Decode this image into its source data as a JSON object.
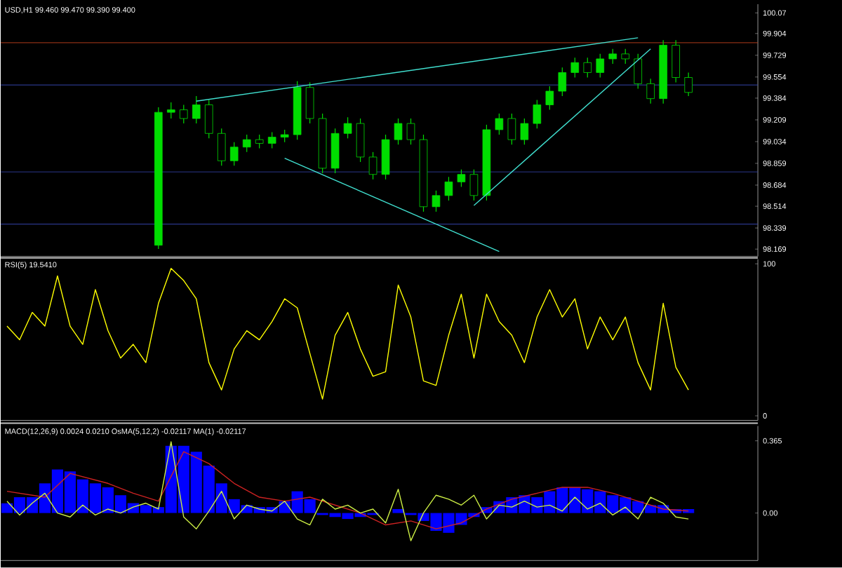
{
  "chart_data": [
    {
      "type": "candlestick",
      "title": "USD,H1 99.460 99.470 99.390 99.400",
      "color": "#00dd00",
      "categories": [
        null,
        null,
        null,
        null,
        null,
        null,
        null,
        null,
        null,
        null,
        null,
        null,
        null,
        null,
        null,
        null,
        null,
        null,
        null,
        null,
        null,
        null,
        null,
        null,
        null,
        null,
        null,
        null,
        null,
        null,
        null,
        null,
        null,
        null,
        null,
        null,
        null,
        null,
        null,
        null,
        null,
        null,
        null,
        null,
        null,
        null,
        null,
        null,
        null,
        null,
        null,
        null,
        null,
        null,
        null,
        null,
        null,
        null,
        null,
        null
      ],
      "ohlc": [
        null,
        null,
        null,
        null,
        null,
        null,
        null,
        null,
        null,
        null,
        null,
        null,
        [
          98.2,
          99.31,
          98.17,
          99.27
        ],
        [
          99.27,
          99.35,
          99.22,
          99.29
        ],
        [
          99.29,
          99.33,
          99.18,
          99.22
        ],
        [
          99.22,
          99.4,
          99.18,
          99.33
        ],
        [
          99.33,
          99.37,
          99.06,
          99.1
        ],
        [
          99.1,
          99.14,
          98.84,
          98.88
        ],
        [
          98.88,
          99.03,
          98.84,
          98.99
        ],
        [
          98.99,
          99.09,
          98.95,
          99.05
        ],
        [
          99.05,
          99.09,
          98.98,
          99.02
        ],
        [
          99.02,
          99.11,
          98.98,
          99.07
        ],
        [
          99.07,
          99.13,
          99.03,
          99.09
        ],
        [
          99.09,
          99.52,
          99.05,
          99.47
        ],
        [
          99.47,
          99.51,
          99.18,
          99.22
        ],
        [
          99.22,
          99.26,
          98.78,
          98.82
        ],
        [
          98.82,
          99.14,
          98.78,
          99.1
        ],
        [
          99.1,
          99.23,
          99.06,
          99.18
        ],
        [
          99.18,
          99.22,
          98.87,
          98.91
        ],
        [
          98.91,
          98.95,
          98.73,
          98.77
        ],
        [
          98.77,
          99.09,
          98.73,
          99.05
        ],
        [
          99.05,
          99.22,
          99.01,
          99.18
        ],
        [
          99.18,
          99.22,
          99.01,
          99.05
        ],
        [
          99.05,
          99.09,
          98.47,
          98.51
        ],
        [
          98.51,
          98.64,
          98.47,
          98.6
        ],
        [
          98.6,
          98.75,
          98.56,
          98.71
        ],
        [
          98.71,
          98.81,
          98.67,
          98.77
        ],
        [
          98.77,
          98.81,
          98.56,
          98.6
        ],
        [
          98.6,
          99.17,
          98.56,
          99.13
        ],
        [
          99.13,
          99.26,
          99.09,
          99.22
        ],
        [
          99.22,
          99.26,
          99.01,
          99.05
        ],
        [
          99.05,
          99.22,
          99.01,
          99.18
        ],
        [
          99.18,
          99.37,
          99.14,
          99.33
        ],
        [
          99.33,
          99.48,
          99.29,
          99.44
        ],
        [
          99.44,
          99.63,
          99.4,
          99.59
        ],
        [
          99.59,
          99.71,
          99.55,
          99.67
        ],
        [
          99.67,
          99.71,
          99.55,
          99.59
        ],
        [
          99.59,
          99.74,
          99.55,
          99.7
        ],
        [
          99.7,
          99.78,
          99.66,
          99.74
        ],
        [
          99.74,
          99.78,
          99.66,
          99.7
        ],
        [
          99.7,
          99.74,
          99.46,
          99.5
        ],
        [
          99.5,
          99.54,
          99.34,
          99.38
        ],
        [
          99.38,
          99.85,
          99.34,
          99.81
        ],
        [
          99.81,
          99.85,
          99.51,
          99.55
        ],
        [
          99.55,
          99.59,
          99.4,
          99.43
        ],
        null,
        null,
        null,
        null,
        null
      ],
      "series": [
        {
          "type": "line",
          "color": "#40e0d0",
          "values": [
            null,
            null,
            null,
            null,
            null,
            null,
            null,
            null,
            null,
            null,
            null,
            null,
            null,
            null,
            null,
            99.36,
            null,
            null,
            null,
            null,
            null,
            null,
            null,
            null,
            null,
            null,
            null,
            null,
            null,
            null,
            null,
            null,
            null,
            null,
            null,
            null,
            null,
            null,
            null,
            null,
            null,
            null,
            null,
            null,
            null,
            null,
            null,
            null,
            null,
            null,
            99.87,
            null,
            null,
            null,
            null,
            null,
            null,
            null,
            null,
            null
          ]
        },
        {
          "type": "line",
          "color": "#40e0d0",
          "values": [
            null,
            null,
            null,
            null,
            null,
            null,
            null,
            null,
            null,
            null,
            null,
            null,
            null,
            null,
            null,
            null,
            null,
            null,
            null,
            null,
            null,
            null,
            null,
            null,
            null,
            null,
            null,
            null,
            null,
            null,
            null,
            null,
            null,
            null,
            null,
            null,
            null,
            98.52,
            null,
            null,
            null,
            null,
            null,
            null,
            null,
            null,
            null,
            null,
            null,
            null,
            null,
            99.78,
            null,
            null,
            null,
            null,
            null,
            null,
            null,
            null
          ]
        },
        {
          "type": "line",
          "color": "#40e0d0",
          "values": [
            null,
            null,
            null,
            null,
            null,
            null,
            null,
            null,
            null,
            null,
            null,
            null,
            null,
            null,
            null,
            null,
            null,
            null,
            null,
            null,
            null,
            null,
            98.9,
            null,
            null,
            null,
            null,
            null,
            null,
            null,
            null,
            null,
            null,
            null,
            null,
            null,
            null,
            null,
            null,
            98.15,
            null,
            null,
            null,
            null,
            null,
            null,
            null,
            null,
            null,
            null,
            null,
            null,
            null,
            null,
            null,
            null,
            null,
            null,
            null,
            null
          ]
        }
      ],
      "ref_lines": [
        {
          "axis": "y",
          "value": 99.83,
          "color": "#b03a1a"
        },
        {
          "axis": "y",
          "value": 99.49,
          "color": "#3344aa"
        },
        {
          "axis": "y",
          "value": 98.79,
          "color": "#3344aa"
        },
        {
          "axis": "y",
          "value": 98.37,
          "color": "#3344aa"
        }
      ],
      "ylim": [
        98.11,
        100.14
      ],
      "yticks": [
        100.07,
        99.904,
        99.729,
        99.554,
        99.384,
        99.209,
        99.034,
        98.859,
        98.684,
        98.514,
        98.339,
        98.169
      ],
      "tick_labels": "y"
    },
    {
      "type": "line",
      "title": "RSI(5) 19.5410",
      "color": "#ffff00",
      "categories": [
        null,
        null,
        null,
        null,
        null,
        null,
        null,
        null,
        null,
        null,
        null,
        null,
        null,
        null,
        null,
        null,
        null,
        null,
        null,
        null,
        null,
        null,
        null,
        null,
        null,
        null,
        null,
        null,
        null,
        null,
        null,
        null,
        null,
        null,
        null,
        null,
        null,
        null,
        null,
        null,
        null,
        null,
        null,
        null,
        null,
        null,
        null,
        null,
        null,
        null,
        null,
        null,
        null,
        null,
        null,
        null,
        null,
        null,
        null,
        null
      ],
      "values": [
        59,
        50,
        68,
        59,
        92,
        59,
        47,
        83,
        56,
        38,
        47,
        35,
        74,
        97,
        89,
        77,
        35,
        17,
        44,
        56,
        50,
        62,
        77,
        71,
        41,
        11,
        53,
        68,
        44,
        26,
        29,
        86,
        65,
        23,
        20,
        53,
        80,
        38,
        80,
        62,
        53,
        35,
        65,
        83,
        65,
        77,
        44,
        65,
        50,
        65,
        35,
        17,
        74,
        32,
        17,
        null,
        null,
        null,
        null,
        null
      ],
      "ylim": [
        -3,
        103
      ],
      "yticks": [
        100,
        0
      ],
      "tick_labels": "y"
    },
    {
      "type": "bar",
      "title": "MACD(12,26,9) 0.0024 0.0210 OsMA(5,12,2) -0.02117 MA(1) -0.02117",
      "categories": [
        null,
        null,
        null,
        null,
        null,
        null,
        null,
        null,
        null,
        null,
        null,
        null,
        null,
        null,
        null,
        null,
        null,
        null,
        null,
        null,
        null,
        null,
        null,
        null,
        null,
        null,
        null,
        null,
        null,
        null,
        null,
        null,
        null,
        null,
        null,
        null,
        null,
        null,
        null,
        null,
        null,
        null,
        null,
        null,
        null,
        null,
        null,
        null,
        null,
        null,
        null,
        null,
        null,
        null,
        null,
        null,
        null,
        null,
        null,
        null
      ],
      "series": [
        {
          "type": "bar",
          "color": "#0000ff",
          "values": [
            0.05,
            0.08,
            0.08,
            0.15,
            0.22,
            0.21,
            0.17,
            0.15,
            0.13,
            0.09,
            0.05,
            0.04,
            0.03,
            0.34,
            0.34,
            0.31,
            0.24,
            0.15,
            0.07,
            0.04,
            0.03,
            0.03,
            0.06,
            0.11,
            0.07,
            -0.01,
            -0.02,
            -0.03,
            -0.02,
            -0.01,
            0.0,
            0.02,
            -0.01,
            -0.04,
            -0.09,
            -0.1,
            -0.06,
            -0.02,
            0.03,
            0.06,
            0.08,
            0.09,
            0.08,
            0.11,
            0.13,
            0.13,
            0.12,
            0.11,
            0.09,
            0.08,
            0.06,
            0.04,
            0.04,
            0.02,
            0.02,
            null,
            null,
            null,
            null,
            null
          ]
        },
        {
          "type": "line",
          "color": "#cc2222",
          "values": [
            0.11,
            null,
            null,
            0.08,
            null,
            0.2,
            null,
            null,
            0.15,
            null,
            0.1,
            null,
            0.06,
            null,
            0.31,
            null,
            0.25,
            null,
            0.15,
            null,
            0.08,
            null,
            0.06,
            null,
            0.08,
            null,
            0.04,
            null,
            0.0,
            null,
            -0.06,
            null,
            -0.04,
            null,
            -0.08,
            null,
            -0.05,
            null,
            0.02,
            null,
            0.07,
            null,
            0.1,
            null,
            0.13,
            null,
            0.13,
            null,
            0.1,
            null,
            0.06,
            null,
            0.02,
            null,
            0.01,
            null,
            null,
            null,
            null,
            null
          ]
        },
        {
          "type": "line",
          "color": "#ccee44",
          "values": [
            0.06,
            -0.01,
            0.05,
            0.1,
            0.0,
            -0.02,
            0.04,
            -0.01,
            0.02,
            0.0,
            0.03,
            0.05,
            0.02,
            0.36,
            -0.02,
            -0.08,
            0.01,
            0.11,
            -0.03,
            0.04,
            0.02,
            0.01,
            0.06,
            -0.03,
            -0.06,
            0.07,
            0.02,
            0.04,
            0.0,
            0.02,
            -0.05,
            0.12,
            -0.14,
            0.0,
            0.09,
            0.07,
            0.04,
            0.09,
            -0.03,
            0.04,
            0.03,
            0.06,
            0.03,
            0.04,
            0.01,
            0.08,
            0.02,
            0.05,
            -0.01,
            0.03,
            -0.03,
            0.08,
            0.05,
            -0.02,
            -0.03,
            null,
            null,
            null,
            null,
            null
          ]
        }
      ],
      "ylim": [
        -0.24,
        0.44
      ],
      "yticks": [
        0.365,
        {
          "value": 0,
          "label": "0.00"
        }
      ],
      "tick_labels": "y"
    }
  ]
}
